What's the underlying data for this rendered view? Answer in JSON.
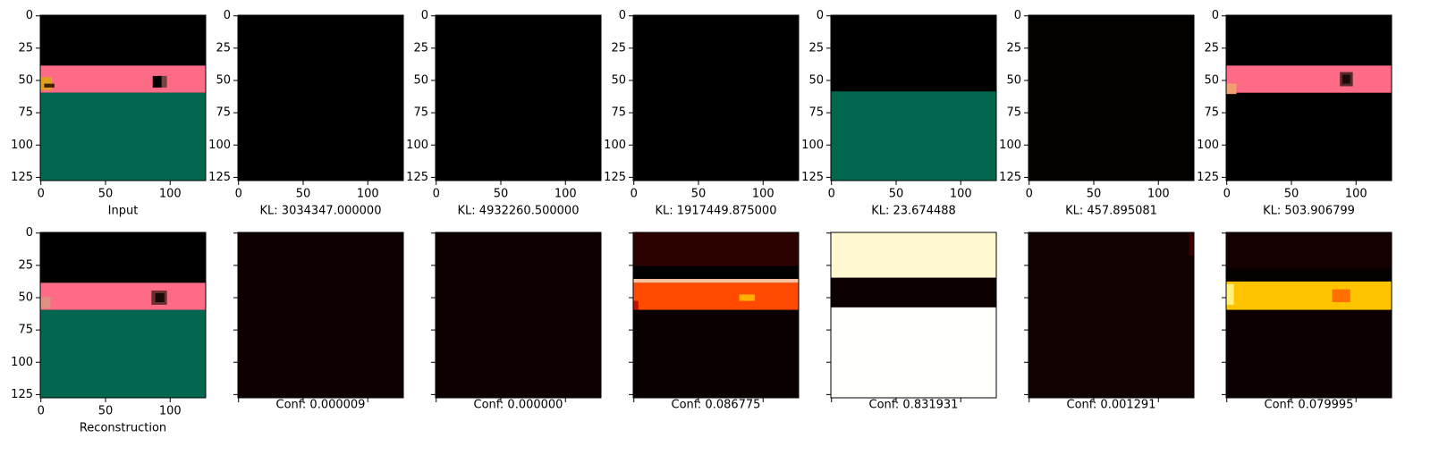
{
  "axes": {
    "xlim": [
      -0.5,
      127.5
    ],
    "ylim": [
      127.5,
      -0.5
    ],
    "xticks": [
      0,
      50,
      100
    ],
    "yticks": [
      0,
      25,
      50,
      75,
      100,
      125
    ]
  },
  "top_labels": [
    "Input",
    "KL: 3034347.000000",
    "KL: 4932260.500000",
    "KL: 1917449.875000",
    "KL: 23.674488",
    "KL: 457.895081",
    "KL: 503.906799"
  ],
  "bottom_labels": [
    "Reconstruction",
    "Conf: 0.000009",
    "Conf: 0.000000",
    "Conf: 0.086775",
    "Conf: 0.831931",
    "Conf: 0.001291",
    "Conf: 0.079995"
  ]
}
